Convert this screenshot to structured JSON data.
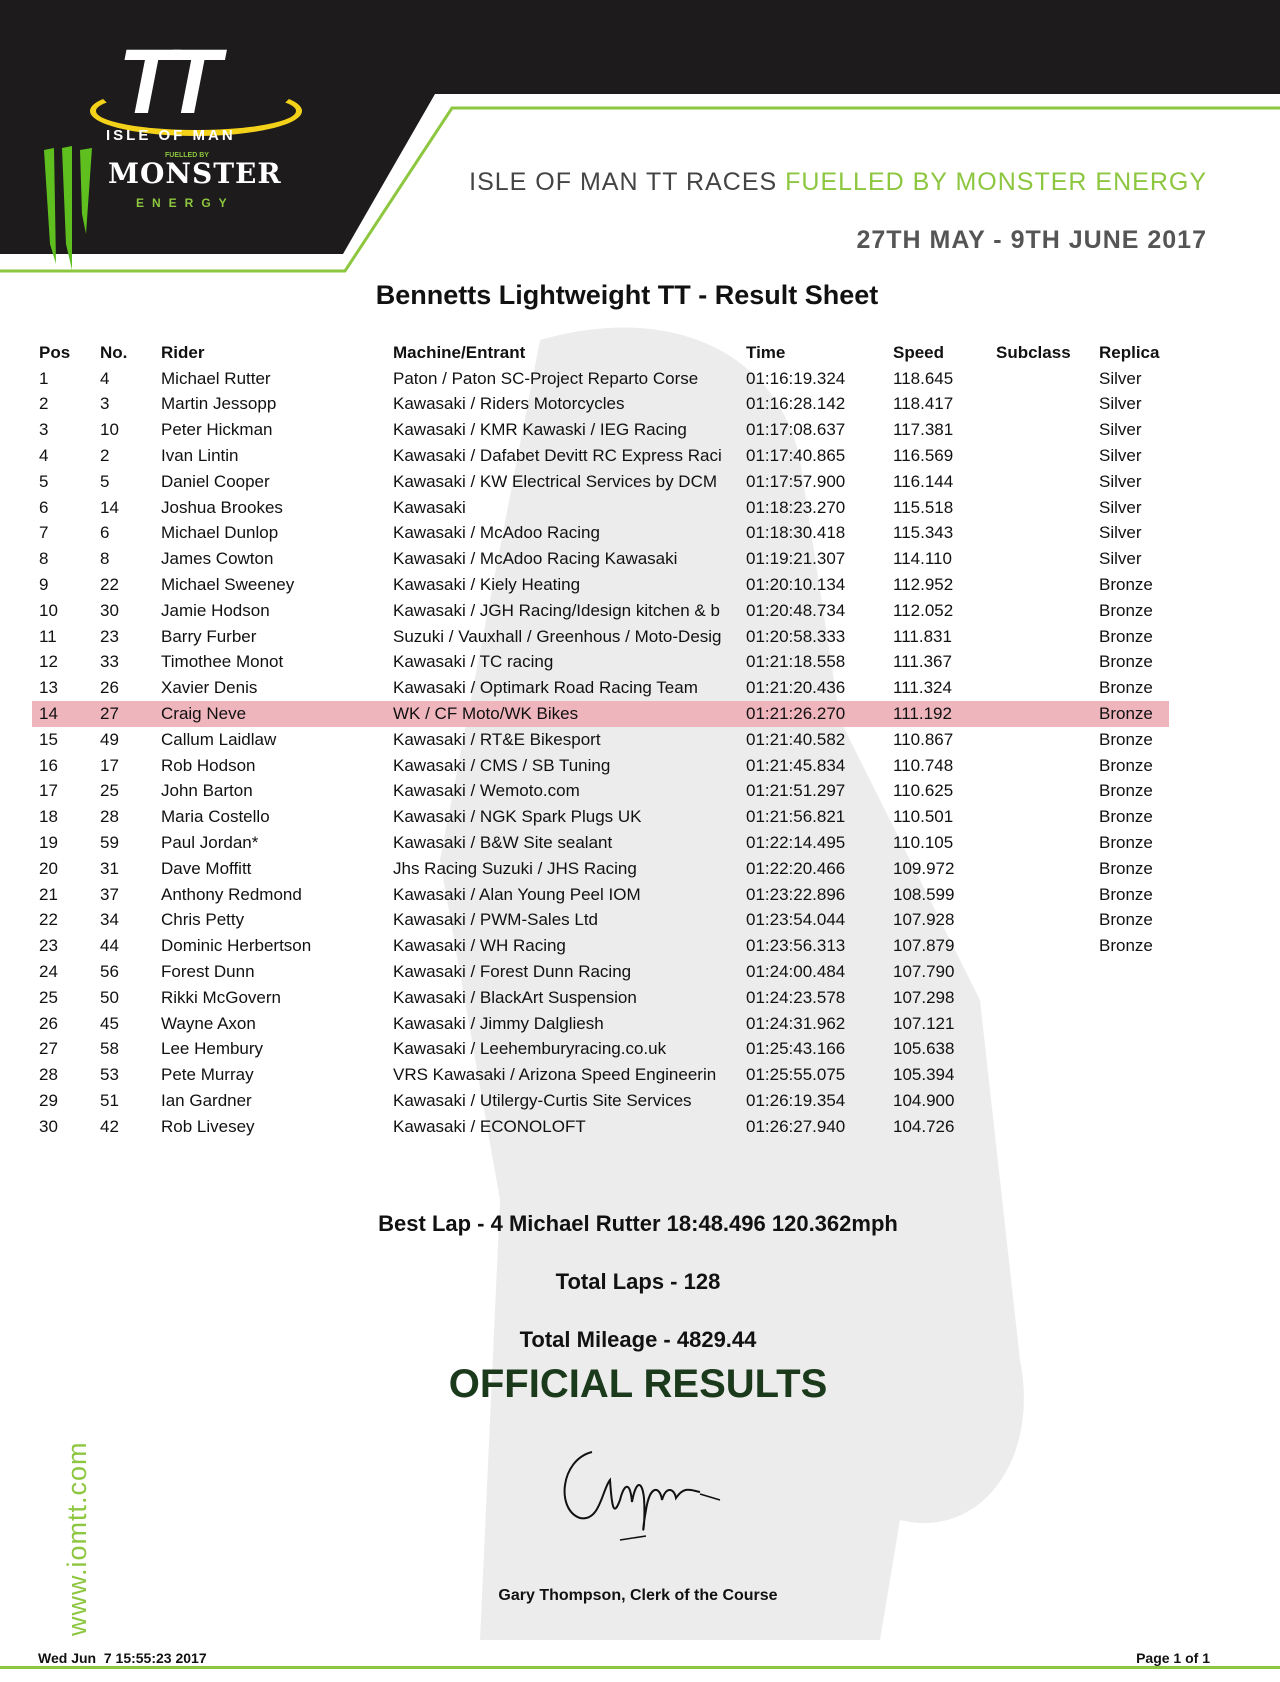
{
  "header": {
    "logo_text": {
      "tt": "TT",
      "isle_of_man": "ISLE OF MAN",
      "fuelled_by": "FUELLED BY",
      "monster": "MONSTER",
      "energy": "ENERGY"
    },
    "tagline_main": "ISLE OF MAN TT RACES ",
    "tagline_accent": "FUELLED BY MONSTER ENERGY",
    "dates": "27TH MAY - 9TH JUNE 2017",
    "accent_color": "#8dc63f"
  },
  "title": "Bennetts Lightweight TT - Result Sheet",
  "table": {
    "columns": [
      "Pos",
      "No.",
      "Rider",
      "Machine/Entrant",
      "Time",
      "Speed",
      "Subclass",
      "Replica"
    ],
    "highlight_pos": "14",
    "rows": [
      [
        "1",
        "4",
        "Michael Rutter",
        "Paton / Paton SC-Project Reparto Corse",
        "01:16:19.324",
        "118.645",
        "",
        "Silver"
      ],
      [
        "2",
        "3",
        "Martin Jessopp",
        "Kawasaki / Riders Motorcycles",
        "01:16:28.142",
        "118.417",
        "",
        "Silver"
      ],
      [
        "3",
        "10",
        "Peter Hickman",
        "Kawasaki / KMR Kawaski / IEG Racing",
        "01:17:08.637",
        "117.381",
        "",
        "Silver"
      ],
      [
        "4",
        "2",
        "Ivan Lintin",
        "Kawasaki / Dafabet Devitt RC Express Raci",
        "01:17:40.865",
        "116.569",
        "",
        "Silver"
      ],
      [
        "5",
        "5",
        "Daniel Cooper",
        "Kawasaki / KW Electrical Services by DCM",
        "01:17:57.900",
        "116.144",
        "",
        "Silver"
      ],
      [
        "6",
        "14",
        "Joshua Brookes",
        "Kawasaki",
        "01:18:23.270",
        "115.518",
        "",
        "Silver"
      ],
      [
        "7",
        "6",
        "Michael Dunlop",
        "Kawasaki / McAdoo Racing",
        "01:18:30.418",
        "115.343",
        "",
        "Silver"
      ],
      [
        "8",
        "8",
        "James Cowton",
        "Kawasaki / McAdoo Racing Kawasaki",
        "01:19:21.307",
        "114.110",
        "",
        "Silver"
      ],
      [
        "9",
        "22",
        "Michael Sweeney",
        "Kawasaki / Kiely Heating",
        "01:20:10.134",
        "112.952",
        "",
        "Bronze"
      ],
      [
        "10",
        "30",
        "Jamie Hodson",
        "Kawasaki / JGH Racing/Idesign kitchen & b",
        "01:20:48.734",
        "112.052",
        "",
        "Bronze"
      ],
      [
        "11",
        "23",
        "Barry Furber",
        "Suzuki / Vauxhall / Greenhous / Moto-Desig",
        "01:20:58.333",
        "111.831",
        "",
        "Bronze"
      ],
      [
        "12",
        "33",
        "Timothee Monot",
        "Kawasaki / TC racing",
        "01:21:18.558",
        "111.367",
        "",
        "Bronze"
      ],
      [
        "13",
        "26",
        "Xavier Denis",
        "Kawasaki / Optimark Road Racing Team",
        "01:21:20.436",
        "111.324",
        "",
        "Bronze"
      ],
      [
        "14",
        "27",
        "Craig Neve",
        "WK / CF Moto/WK Bikes",
        "01:21:26.270",
        "111.192",
        "",
        "Bronze"
      ],
      [
        "15",
        "49",
        "Callum Laidlaw",
        "Kawasaki / RT&E Bikesport",
        "01:21:40.582",
        "110.867",
        "",
        "Bronze"
      ],
      [
        "16",
        "17",
        "Rob Hodson",
        "Kawasaki / CMS / SB Tuning",
        "01:21:45.834",
        "110.748",
        "",
        "Bronze"
      ],
      [
        "17",
        "25",
        "John Barton",
        "Kawasaki / Wemoto.com",
        "01:21:51.297",
        "110.625",
        "",
        "Bronze"
      ],
      [
        "18",
        "28",
        "Maria Costello",
        "Kawasaki / NGK Spark Plugs UK",
        "01:21:56.821",
        "110.501",
        "",
        "Bronze"
      ],
      [
        "19",
        "59",
        "Paul Jordan*",
        "Kawasaki / B&W Site sealant",
        "01:22:14.495",
        "110.105",
        "",
        "Bronze"
      ],
      [
        "20",
        "31",
        "Dave Moffitt",
        "Jhs Racing Suzuki / JHS Racing",
        "01:22:20.466",
        "109.972",
        "",
        "Bronze"
      ],
      [
        "21",
        "37",
        "Anthony Redmond",
        "Kawasaki / Alan Young Peel IOM",
        "01:23:22.896",
        "108.599",
        "",
        "Bronze"
      ],
      [
        "22",
        "34",
        "Chris Petty",
        "Kawasaki / PWM-Sales Ltd",
        "01:23:54.044",
        "107.928",
        "",
        "Bronze"
      ],
      [
        "23",
        "44",
        "Dominic Herbertson",
        "Kawasaki / WH Racing",
        "01:23:56.313",
        "107.879",
        "",
        "Bronze"
      ],
      [
        "24",
        "56",
        "Forest Dunn",
        "Kawasaki / Forest Dunn Racing",
        "01:24:00.484",
        "107.790",
        "",
        ""
      ],
      [
        "25",
        "50",
        "Rikki McGovern",
        "Kawasaki / BlackArt Suspension",
        "01:24:23.578",
        "107.298",
        "",
        ""
      ],
      [
        "26",
        "45",
        "Wayne Axon",
        "Kawasaki / Jimmy Dalgliesh",
        "01:24:31.962",
        "107.121",
        "",
        ""
      ],
      [
        "27",
        "58",
        "Lee Hembury",
        "Kawasaki / Leehemburyracing.co.uk",
        "01:25:43.166",
        "105.638",
        "",
        ""
      ],
      [
        "28",
        "53",
        "Pete Murray",
        "VRS Kawasaki / Arizona Speed Engineerin",
        "01:25:55.075",
        "105.394",
        "",
        ""
      ],
      [
        "29",
        "51",
        "Ian Gardner",
        "Kawasaki / Utilergy-Curtis Site Services",
        "01:26:19.354",
        "104.900",
        "",
        ""
      ],
      [
        "30",
        "42",
        "Rob Livesey",
        "Kawasaki / ECONOLOFT",
        "01:26:27.940",
        "104.726",
        "",
        ""
      ]
    ]
  },
  "summary": {
    "best_lap": "Best Lap - 4 Michael Rutter 18:48.496 120.362mph",
    "total_laps": "Total Laps - 128",
    "total_mileage": "Total Mileage - 4829.44",
    "official": "OFFICIAL RESULTS",
    "clerk": "Gary Thompson, Clerk of the Course"
  },
  "footer": {
    "website": "www.iomtt.com",
    "timestamp": "Wed Jun  7 15:55:23 2017",
    "page": "Page 1 of 1"
  }
}
